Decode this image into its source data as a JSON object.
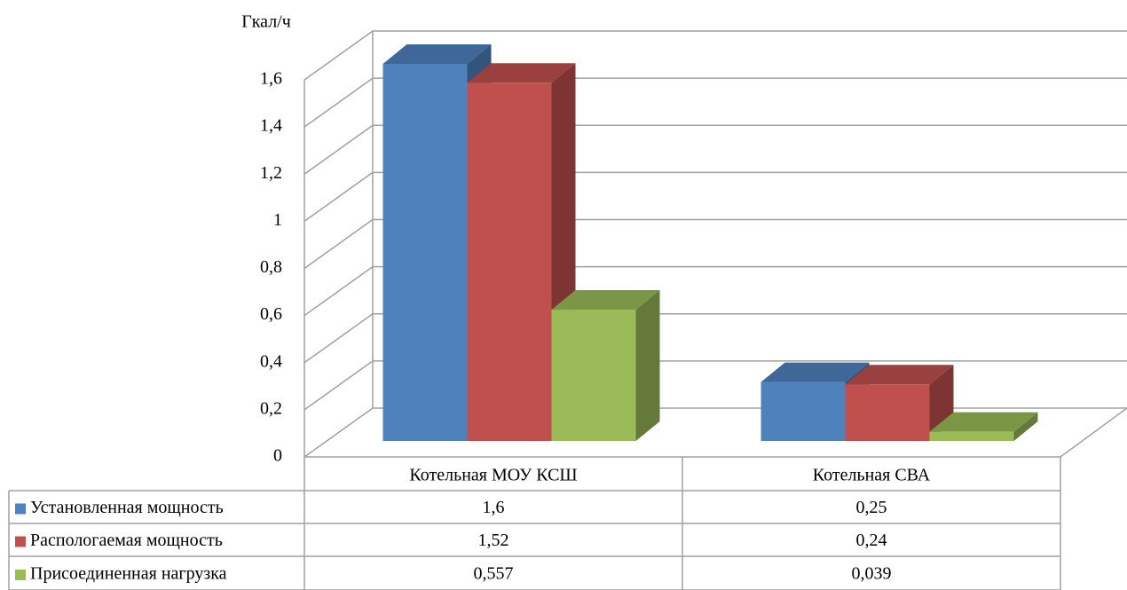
{
  "chart_data": {
    "type": "bar3d",
    "y_axis_label": "Гкал/ч",
    "categories": [
      "Котельная МОУ КСШ",
      "Котельная СВА"
    ],
    "series": [
      {
        "name": "Установленная мощность",
        "color": "#4f81bd",
        "values": [
          1.6,
          0.25
        ],
        "value_labels": [
          "1,6",
          "0,25"
        ]
      },
      {
        "name": "Распологаемая мощность",
        "color": "#c0504d",
        "values": [
          1.52,
          0.24
        ],
        "value_labels": [
          "1,52",
          "0,24"
        ]
      },
      {
        "name": "Присоединенная нагрузка",
        "color": "#9bbb59",
        "values": [
          0.557,
          0.039
        ],
        "value_labels": [
          "0,557",
          "0,039"
        ]
      }
    ],
    "ylim": [
      0,
      1.6
    ],
    "yticks": [
      0,
      {
        "value": 0.2,
        "label": "0,2"
      },
      {
        "value": 0.4,
        "label": "0,4"
      },
      {
        "value": 0.6,
        "label": "0,6"
      },
      {
        "value": 0.8,
        "label": "0,8"
      },
      1,
      {
        "value": 1.2,
        "label": "1,2"
      },
      {
        "value": 1.4,
        "label": "1,4"
      },
      {
        "value": 1.6,
        "label": "1,6"
      }
    ],
    "grid": true,
    "data_table": true
  }
}
